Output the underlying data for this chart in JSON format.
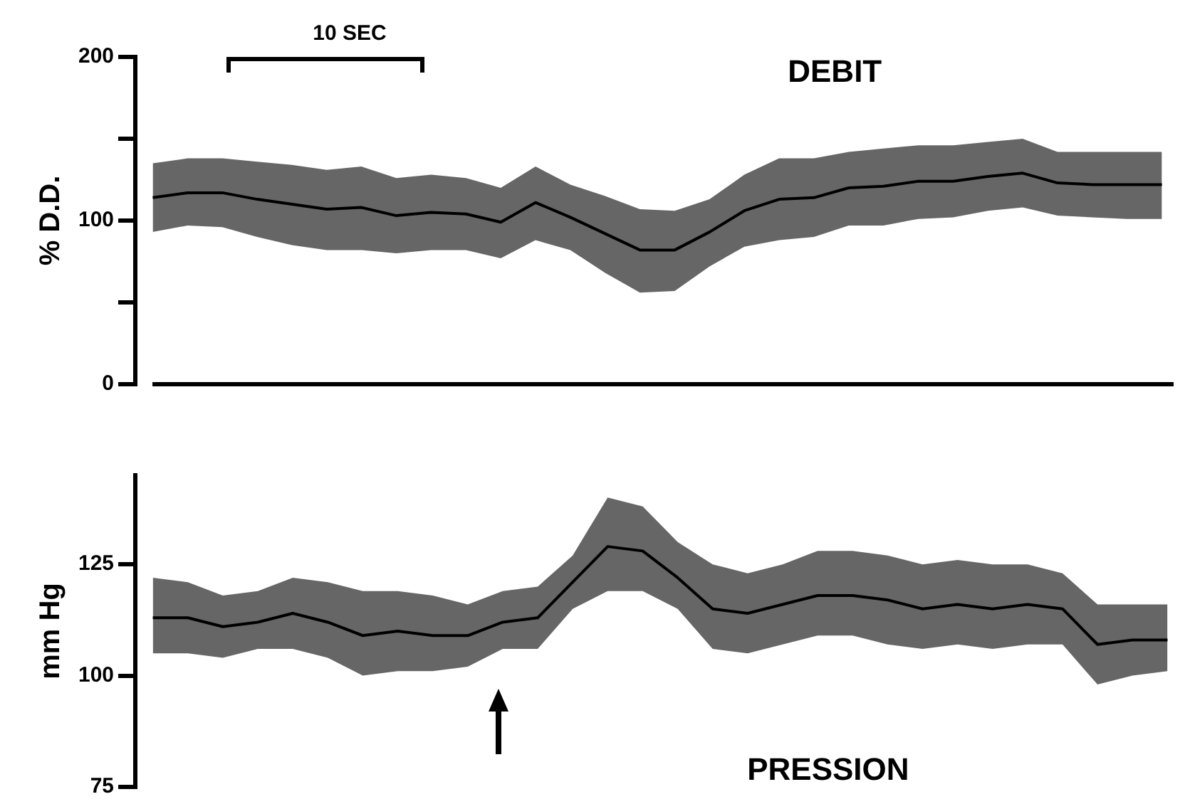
{
  "chart_data": [
    {
      "type": "line",
      "title": "DEBIT",
      "ylabel": "% D.D.",
      "annotations": [
        "10 SEC"
      ],
      "categories": [
        null,
        null,
        null,
        null,
        null,
        null,
        null,
        null,
        null,
        null,
        null,
        null,
        null,
        null,
        null,
        null,
        null,
        null,
        null,
        null,
        null,
        null,
        null,
        null,
        null,
        null,
        null,
        null,
        null,
        null
      ],
      "ylim": [
        0,
        200
      ],
      "yticks": [
        0,
        {
          "value": 50,
          "label": null
        },
        100,
        {
          "value": 150,
          "label": null
        },
        200
      ],
      "ref_lines": [
        {
          "axis": "y",
          "value": 0,
          "color": "#000000"
        }
      ],
      "series": [
        {
          "color": "#000000",
          "values": [
            114,
            117,
            117,
            113,
            110,
            107,
            108,
            103,
            105,
            104,
            99,
            111,
            102,
            92,
            82,
            82,
            93,
            106,
            113,
            114,
            120,
            121,
            124,
            124,
            127,
            129,
            123,
            122,
            122,
            122
          ],
          "lower": [
            93,
            97,
            96,
            90,
            85,
            82,
            82,
            80,
            82,
            82,
            77,
            88,
            82,
            68,
            56,
            57,
            72,
            84,
            88,
            90,
            97,
            97,
            101,
            102,
            106,
            108,
            103,
            102,
            101,
            101
          ],
          "upper": [
            135,
            138,
            138,
            136,
            134,
            131,
            133,
            126,
            128,
            126,
            120,
            133,
            122,
            115,
            107,
            106,
            113,
            128,
            138,
            138,
            142,
            144,
            146,
            146,
            148,
            150,
            142,
            142,
            142,
            142
          ]
        }
      ]
    },
    {
      "type": "line",
      "title": "PRESSION",
      "ylabel": "mm Hg",
      "categories": [
        null,
        null,
        null,
        null,
        null,
        null,
        null,
        null,
        null,
        null,
        null,
        null,
        null,
        null,
        null,
        null,
        null,
        null,
        null,
        null,
        null,
        null,
        null,
        null,
        null,
        null,
        null,
        null,
        null,
        null
      ],
      "ylim": [
        75,
        145
      ],
      "yticks": [
        75,
        100,
        125
      ],
      "series": [
        {
          "color": "#000000",
          "values": [
            113,
            113,
            111,
            112,
            114,
            112,
            109,
            110,
            109,
            109,
            112,
            113,
            121,
            129,
            128,
            122,
            115,
            114,
            116,
            118,
            118,
            117,
            115,
            116,
            115,
            116,
            115,
            107,
            108,
            108
          ],
          "lower": [
            105,
            105,
            104,
            106,
            106,
            104,
            100,
            101,
            101,
            102,
            106,
            106,
            115,
            119,
            119,
            115,
            106,
            105,
            107,
            109,
            109,
            107,
            106,
            107,
            106,
            107,
            107,
            98,
            100,
            101
          ],
          "upper": [
            122,
            121,
            118,
            119,
            122,
            121,
            119,
            119,
            118,
            116,
            119,
            120,
            127,
            140,
            138,
            130,
            125,
            123,
            125,
            128,
            128,
            127,
            125,
            126,
            125,
            125,
            123,
            116,
            116,
            116
          ]
        }
      ]
    }
  ]
}
